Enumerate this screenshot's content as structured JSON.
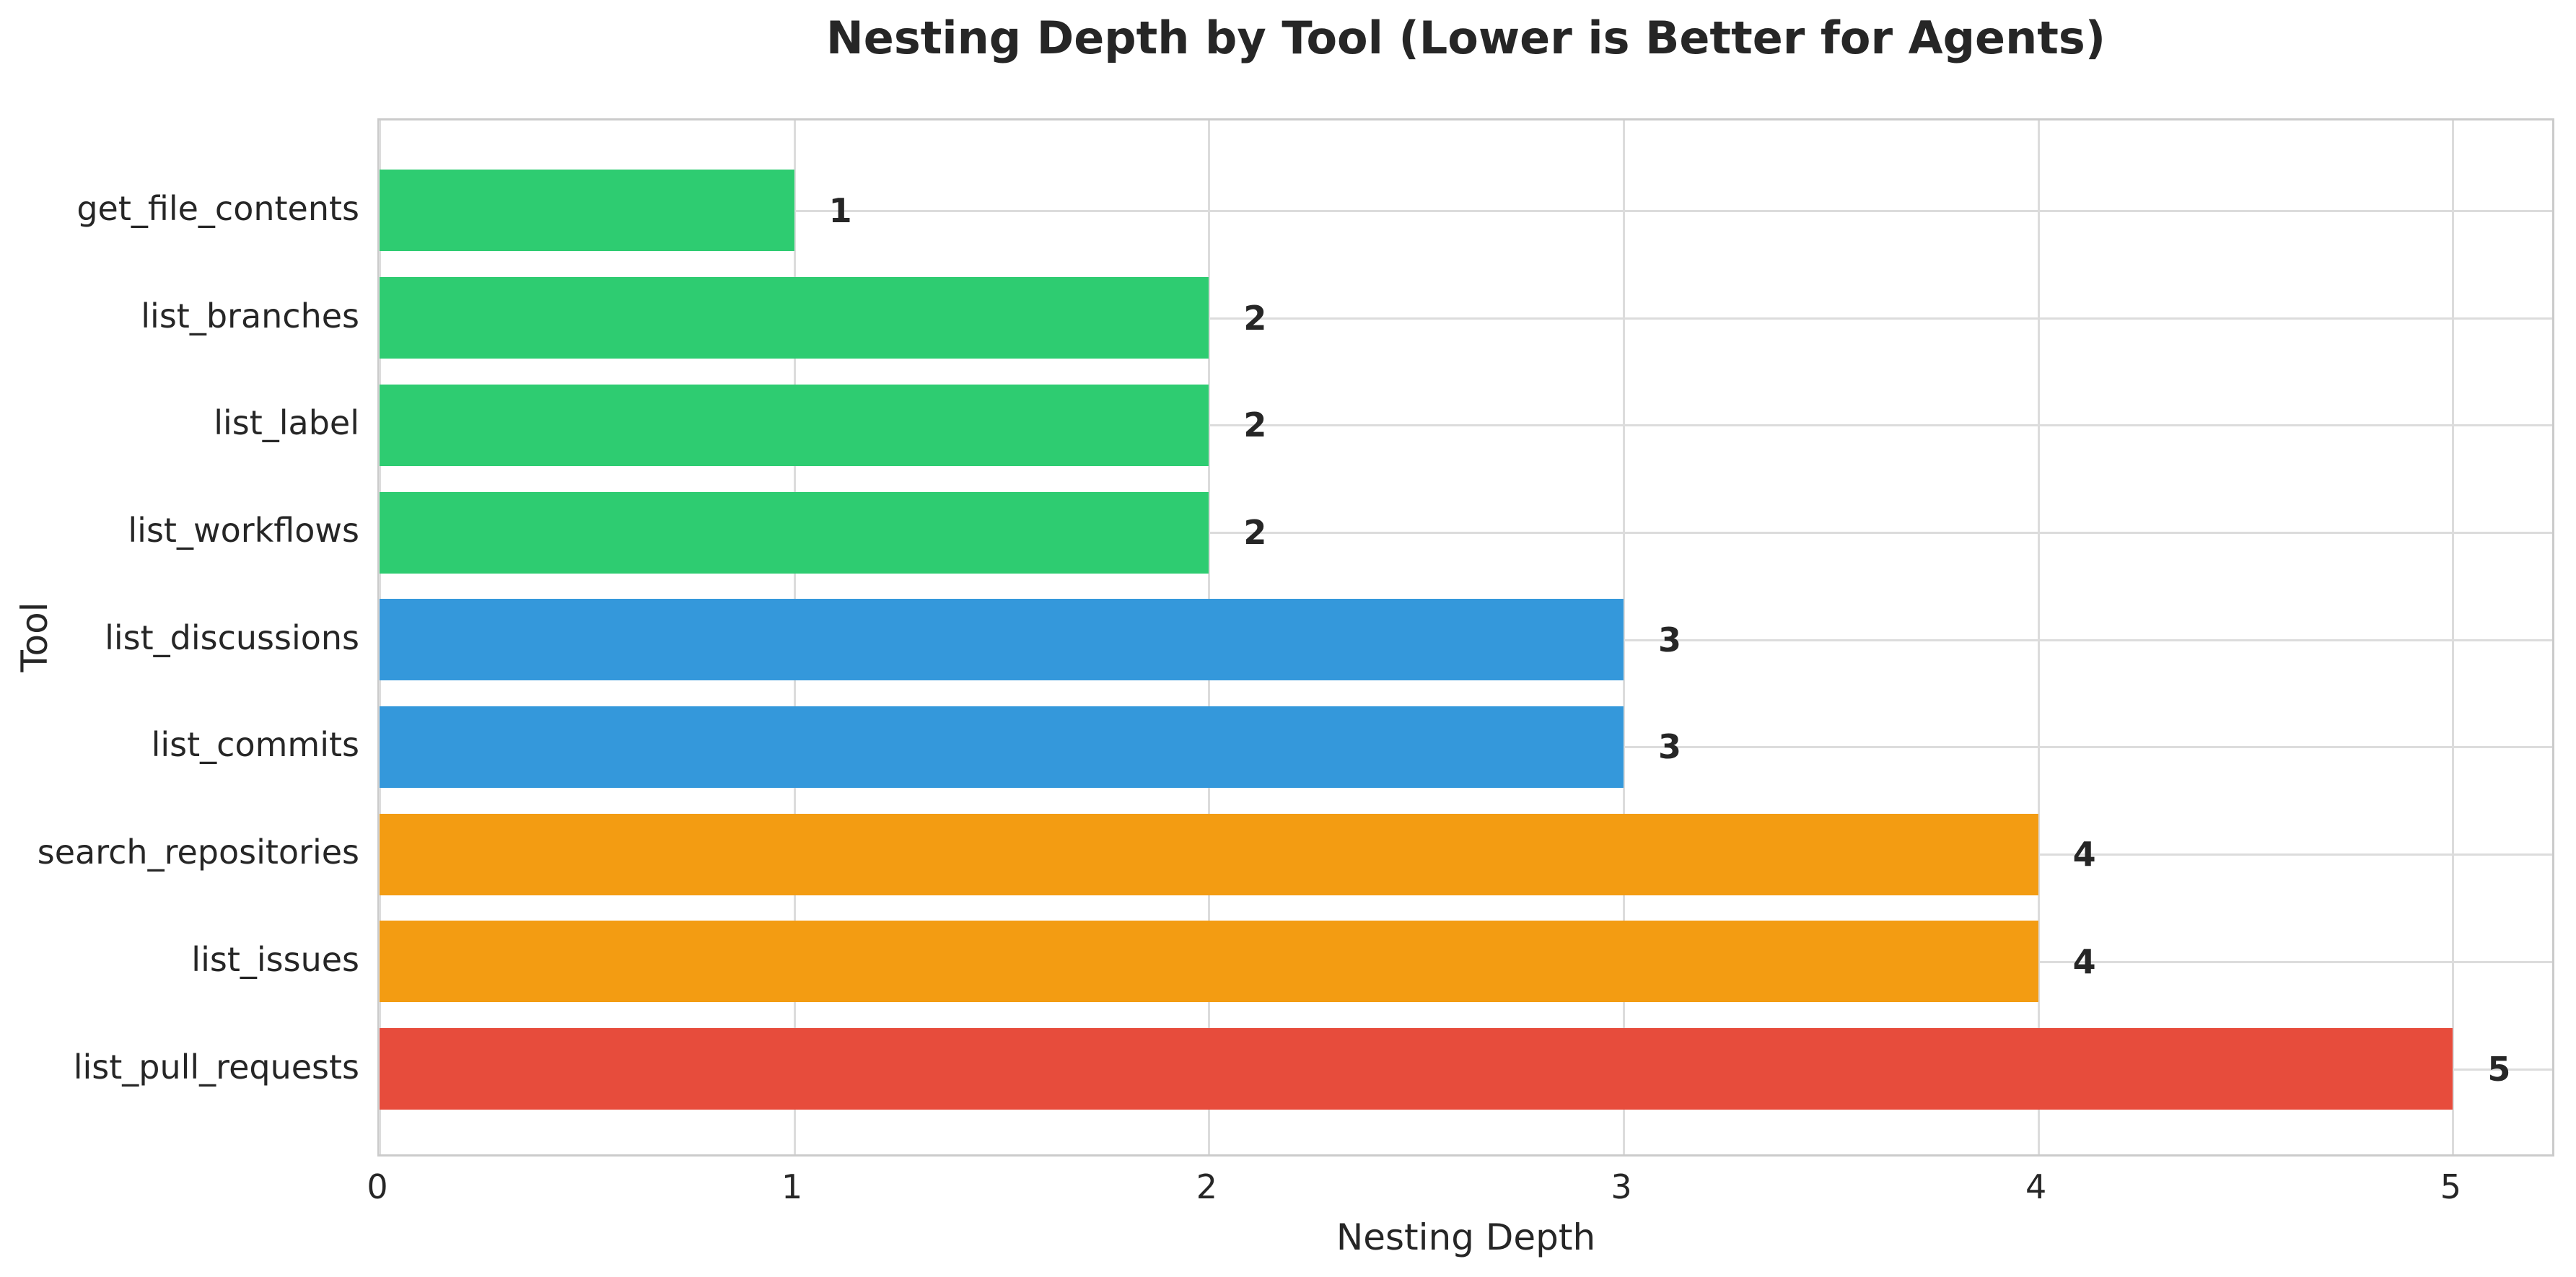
{
  "chart_data": {
    "type": "bar",
    "orientation": "horizontal",
    "title": "Nesting Depth by Tool (Lower is Better for Agents)",
    "xlabel": "Nesting Depth",
    "ylabel": "Tool",
    "categories": [
      "get_file_contents",
      "list_branches",
      "list_label",
      "list_workflows",
      "list_discussions",
      "list_commits",
      "search_repositories",
      "list_issues",
      "list_pull_requests"
    ],
    "values": [
      1,
      2,
      2,
      2,
      3,
      3,
      4,
      4,
      5
    ],
    "value_labels": [
      "1",
      "2",
      "2",
      "2",
      "3",
      "3",
      "4",
      "4",
      "5"
    ],
    "bar_colors": [
      "#2ecc71",
      "#2ecc71",
      "#2ecc71",
      "#2ecc71",
      "#3498db",
      "#3498db",
      "#f39c12",
      "#f39c12",
      "#e74c3c"
    ],
    "xlim": [
      0,
      5.25
    ],
    "xticks": [
      0,
      1,
      2,
      3,
      4,
      5
    ],
    "grid": "both",
    "legend": "none",
    "colors": {
      "grid": "#dcdcdc",
      "spine": "#cbcbcb",
      "text": "#262626",
      "background": "#ffffff",
      "green": "#2ecc71",
      "blue": "#3498db",
      "orange": "#f39c12",
      "red": "#e74c3c"
    }
  }
}
